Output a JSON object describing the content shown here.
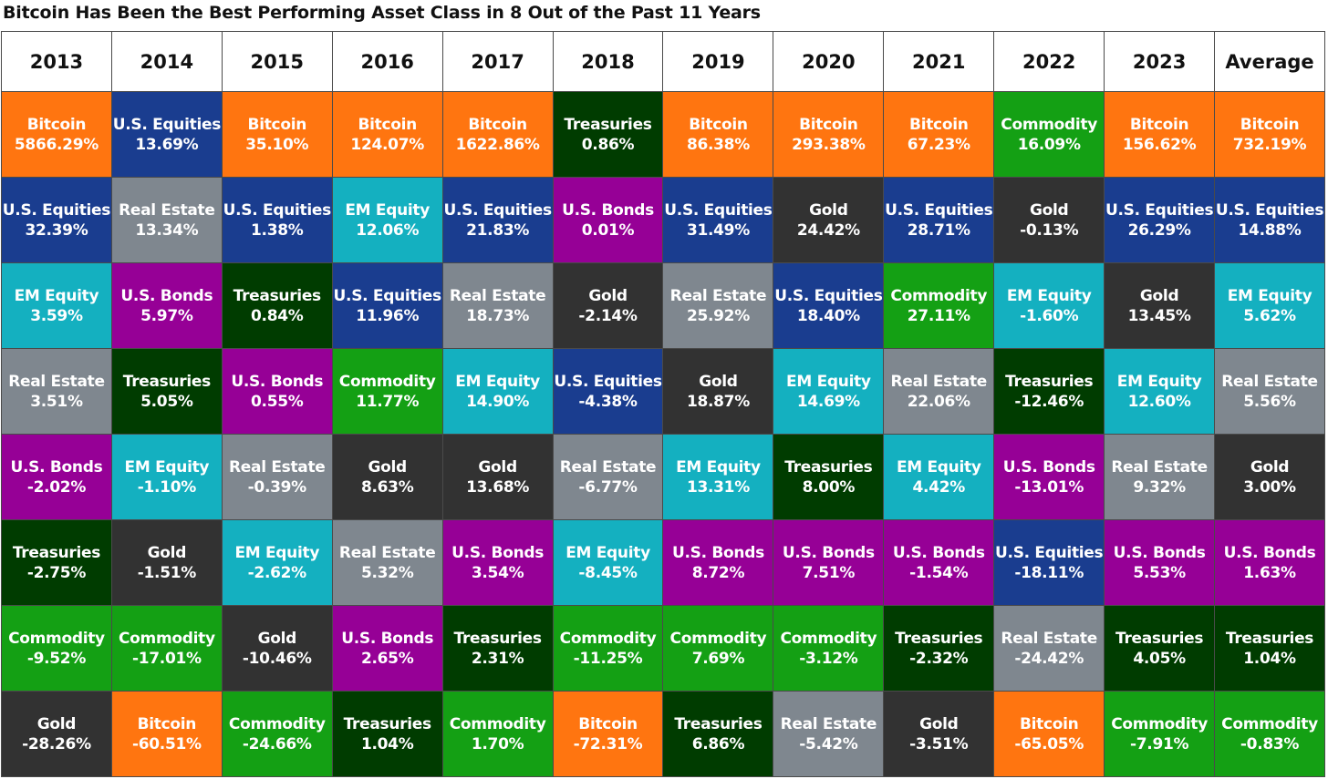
{
  "chart_data": {
    "type": "table",
    "title": "Bitcoin Has Been the Best Performing Asset Class in 8 Out of the Past 11 Years",
    "columns": [
      "2013",
      "2014",
      "2015",
      "2016",
      "2017",
      "2018",
      "2019",
      "2020",
      "2021",
      "2022",
      "2023",
      "Average"
    ],
    "colors": {
      "Bitcoin": "#ff7510",
      "U.S. Equities": "#1a3d8f",
      "Real Estate": "#7f878f",
      "EM Equity": "#14b0c0",
      "U.S. Bonds": "#960096",
      "Treasuries": "#003c00",
      "Commodity": "#14a014",
      "Gold": "#323232"
    },
    "rows": [
      [
        {
          "asset": "Bitcoin",
          "value": "5866.29%"
        },
        {
          "asset": "U.S. Equities",
          "value": "13.69%"
        },
        {
          "asset": "Bitcoin",
          "value": "35.10%"
        },
        {
          "asset": "Bitcoin",
          "value": "124.07%"
        },
        {
          "asset": "Bitcoin",
          "value": "1622.86%"
        },
        {
          "asset": "Treasuries",
          "value": "0.86%"
        },
        {
          "asset": "Bitcoin",
          "value": "86.38%"
        },
        {
          "asset": "Bitcoin",
          "value": "293.38%"
        },
        {
          "asset": "Bitcoin",
          "value": "67.23%"
        },
        {
          "asset": "Commodity",
          "value": "16.09%"
        },
        {
          "asset": "Bitcoin",
          "value": "156.62%"
        },
        {
          "asset": "Bitcoin",
          "value": "732.19%"
        }
      ],
      [
        {
          "asset": "U.S. Equities",
          "value": "32.39%"
        },
        {
          "asset": "Real Estate",
          "value": "13.34%"
        },
        {
          "asset": "U.S. Equities",
          "value": "1.38%"
        },
        {
          "asset": "EM Equity",
          "value": "12.06%"
        },
        {
          "asset": "U.S. Equities",
          "value": "21.83%"
        },
        {
          "asset": "U.S. Bonds",
          "value": "0.01%"
        },
        {
          "asset": "U.S. Equities",
          "value": "31.49%"
        },
        {
          "asset": "Gold",
          "value": "24.42%"
        },
        {
          "asset": "U.S. Equities",
          "value": "28.71%"
        },
        {
          "asset": "Gold",
          "value": "-0.13%"
        },
        {
          "asset": "U.S. Equities",
          "value": "26.29%"
        },
        {
          "asset": "U.S. Equities",
          "value": "14.88%"
        }
      ],
      [
        {
          "asset": "EM Equity",
          "value": "3.59%"
        },
        {
          "asset": "U.S. Bonds",
          "value": "5.97%"
        },
        {
          "asset": "Treasuries",
          "value": "0.84%"
        },
        {
          "asset": "U.S. Equities",
          "value": "11.96%"
        },
        {
          "asset": "Real Estate",
          "value": "18.73%"
        },
        {
          "asset": "Gold",
          "value": "-2.14%"
        },
        {
          "asset": "Real Estate",
          "value": "25.92%"
        },
        {
          "asset": "U.S. Equities",
          "value": "18.40%"
        },
        {
          "asset": "Commodity",
          "value": "27.11%"
        },
        {
          "asset": "EM Equity",
          "value": "-1.60%"
        },
        {
          "asset": "Gold",
          "value": "13.45%"
        },
        {
          "asset": "EM Equity",
          "value": "5.62%"
        }
      ],
      [
        {
          "asset": "Real Estate",
          "value": "3.51%"
        },
        {
          "asset": "Treasuries",
          "value": "5.05%"
        },
        {
          "asset": "U.S. Bonds",
          "value": "0.55%"
        },
        {
          "asset": "Commodity",
          "value": "11.77%"
        },
        {
          "asset": "EM Equity",
          "value": "14.90%"
        },
        {
          "asset": "U.S. Equities",
          "value": "-4.38%"
        },
        {
          "asset": "Gold",
          "value": "18.87%"
        },
        {
          "asset": "EM Equity",
          "value": "14.69%"
        },
        {
          "asset": "Real Estate",
          "value": "22.06%"
        },
        {
          "asset": "Treasuries",
          "value": "-12.46%"
        },
        {
          "asset": "EM Equity",
          "value": "12.60%"
        },
        {
          "asset": "Real Estate",
          "value": "5.56%"
        }
      ],
      [
        {
          "asset": "U.S. Bonds",
          "value": "-2.02%"
        },
        {
          "asset": "EM Equity",
          "value": "-1.10%"
        },
        {
          "asset": "Real Estate",
          "value": "-0.39%"
        },
        {
          "asset": "Gold",
          "value": "8.63%"
        },
        {
          "asset": "Gold",
          "value": "13.68%"
        },
        {
          "asset": "Real Estate",
          "value": "-6.77%"
        },
        {
          "asset": "EM Equity",
          "value": "13.31%"
        },
        {
          "asset": "Treasuries",
          "value": "8.00%"
        },
        {
          "asset": "EM Equity",
          "value": "4.42%"
        },
        {
          "asset": "U.S. Bonds",
          "value": "-13.01%"
        },
        {
          "asset": "Real Estate",
          "value": "9.32%"
        },
        {
          "asset": "Gold",
          "value": "3.00%"
        }
      ],
      [
        {
          "asset": "Treasuries",
          "value": "-2.75%"
        },
        {
          "asset": "Gold",
          "value": "-1.51%"
        },
        {
          "asset": "EM Equity",
          "value": "-2.62%"
        },
        {
          "asset": "Real Estate",
          "value": "5.32%"
        },
        {
          "asset": "U.S. Bonds",
          "value": "3.54%"
        },
        {
          "asset": "EM Equity",
          "value": "-8.45%"
        },
        {
          "asset": "U.S. Bonds",
          "value": "8.72%"
        },
        {
          "asset": "U.S. Bonds",
          "value": "7.51%"
        },
        {
          "asset": "U.S. Bonds",
          "value": "-1.54%"
        },
        {
          "asset": "U.S. Equities",
          "value": "-18.11%"
        },
        {
          "asset": "U.S. Bonds",
          "value": "5.53%"
        },
        {
          "asset": "U.S. Bonds",
          "value": "1.63%"
        }
      ],
      [
        {
          "asset": "Commodity",
          "value": "-9.52%"
        },
        {
          "asset": "Commodity",
          "value": "-17.01%"
        },
        {
          "asset": "Gold",
          "value": "-10.46%"
        },
        {
          "asset": "U.S. Bonds",
          "value": "2.65%"
        },
        {
          "asset": "Treasuries",
          "value": "2.31%"
        },
        {
          "asset": "Commodity",
          "value": "-11.25%"
        },
        {
          "asset": "Commodity",
          "value": "7.69%"
        },
        {
          "asset": "Commodity",
          "value": "-3.12%"
        },
        {
          "asset": "Treasuries",
          "value": "-2.32%"
        },
        {
          "asset": "Real Estate",
          "value": "-24.42%"
        },
        {
          "asset": "Treasuries",
          "value": "4.05%"
        },
        {
          "asset": "Treasuries",
          "value": "1.04%"
        }
      ],
      [
        {
          "asset": "Gold",
          "value": "-28.26%"
        },
        {
          "asset": "Bitcoin",
          "value": "-60.51%"
        },
        {
          "asset": "Commodity",
          "value": "-24.66%"
        },
        {
          "asset": "Treasuries",
          "value": "1.04%"
        },
        {
          "asset": "Commodity",
          "value": "1.70%"
        },
        {
          "asset": "Bitcoin",
          "value": "-72.31%"
        },
        {
          "asset": "Treasuries",
          "value": "6.86%"
        },
        {
          "asset": "Real Estate",
          "value": "-5.42%"
        },
        {
          "asset": "Gold",
          "value": "-3.51%"
        },
        {
          "asset": "Bitcoin",
          "value": "-65.05%"
        },
        {
          "asset": "Commodity",
          "value": "-7.91%"
        },
        {
          "asset": "Commodity",
          "value": "-0.83%"
        }
      ]
    ]
  }
}
